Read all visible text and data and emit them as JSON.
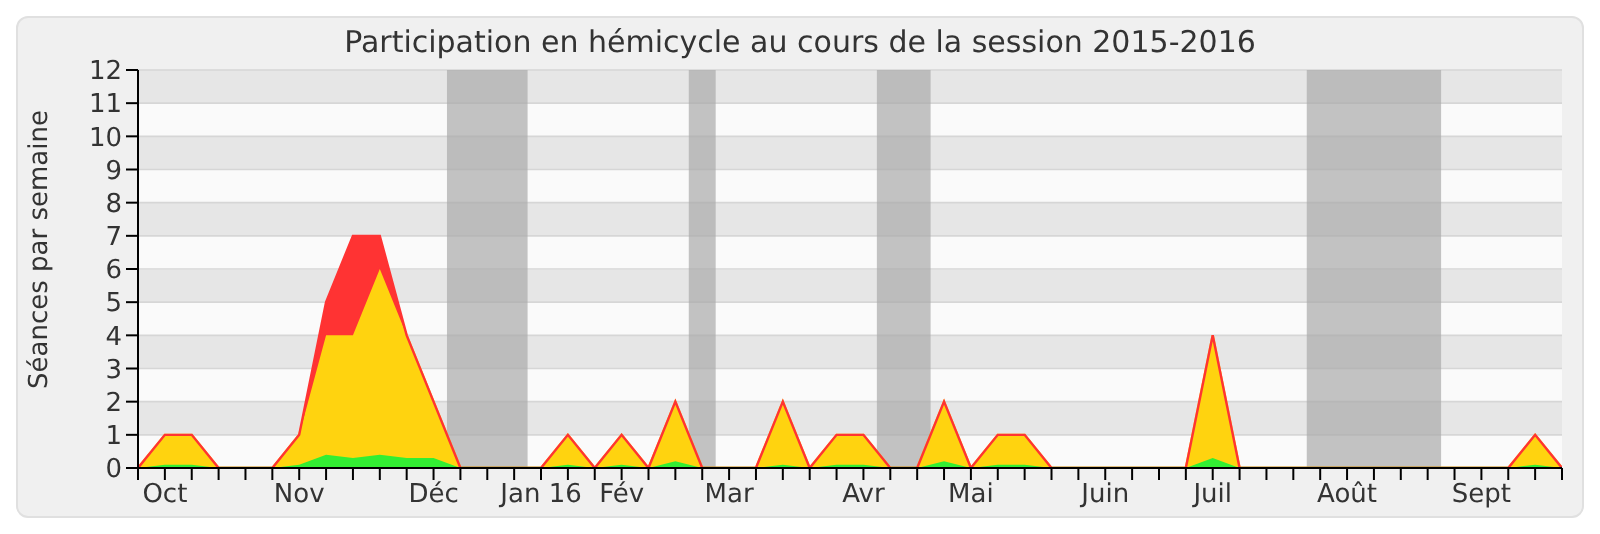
{
  "chart_data": {
    "type": "area",
    "title": "Participation en hémicycle au cours de la session 2015-2016",
    "ylabel": "Séances par semaine",
    "stacked": true,
    "grid": "y",
    "legend": false,
    "x": [
      "2015-09-29",
      "2015-10-06",
      "2015-10-13",
      "2015-10-20",
      "2015-10-27",
      "2015-11-03",
      "2015-11-10",
      "2015-11-17",
      "2015-11-24",
      "2015-12-01",
      "2015-12-08",
      "2015-12-15",
      "2015-12-22",
      "2015-12-29",
      "2016-01-05",
      "2016-01-12",
      "2016-01-19",
      "2016-01-26",
      "2016-02-02",
      "2016-02-09",
      "2016-02-16",
      "2016-02-23",
      "2016-03-01",
      "2016-03-08",
      "2016-03-15",
      "2016-03-22",
      "2016-03-29",
      "2016-04-05",
      "2016-04-12",
      "2016-04-19",
      "2016-04-26",
      "2016-05-03",
      "2016-05-10",
      "2016-05-17",
      "2016-05-24",
      "2016-05-31",
      "2016-06-07",
      "2016-06-14",
      "2016-06-21",
      "2016-06-28",
      "2016-07-05",
      "2016-07-12",
      "2016-07-19",
      "2016-07-26",
      "2016-08-02",
      "2016-08-09",
      "2016-08-16",
      "2016-08-23",
      "2016-08-30",
      "2016-09-06",
      "2016-09-13",
      "2016-09-20",
      "2016-09-27",
      "2016-10-04"
    ],
    "xlim": [
      "2015-09-29",
      "2016-10-04"
    ],
    "xticks": [
      {
        "value": "2015-09-29",
        "label": null
      },
      {
        "value": "2015-10-06",
        "label": "Oct"
      },
      {
        "value": "2015-10-13",
        "label": null
      },
      {
        "value": "2015-10-20",
        "label": null
      },
      {
        "value": "2015-10-27",
        "label": null
      },
      {
        "value": "2015-11-03",
        "label": null
      },
      {
        "value": "2015-11-10",
        "label": "Nov"
      },
      {
        "value": "2015-11-17",
        "label": null
      },
      {
        "value": "2015-11-24",
        "label": null
      },
      {
        "value": "2015-12-01",
        "label": null
      },
      {
        "value": "2015-12-08",
        "label": null
      },
      {
        "value": "2015-12-15",
        "label": "Déc"
      },
      {
        "value": "2015-12-22",
        "label": null
      },
      {
        "value": "2015-12-29",
        "label": null
      },
      {
        "value": "2016-01-05",
        "label": null
      },
      {
        "value": "2016-01-12",
        "label": "Jan 16"
      },
      {
        "value": "2016-01-19",
        "label": null
      },
      {
        "value": "2016-01-26",
        "label": null
      },
      {
        "value": "2016-02-02",
        "label": "Fév"
      },
      {
        "value": "2016-02-09",
        "label": null
      },
      {
        "value": "2016-02-16",
        "label": null
      },
      {
        "value": "2016-02-23",
        "label": null
      },
      {
        "value": "2016-03-01",
        "label": "Mar"
      },
      {
        "value": "2016-03-08",
        "label": null
      },
      {
        "value": "2016-03-15",
        "label": null
      },
      {
        "value": "2016-03-22",
        "label": null
      },
      {
        "value": "2016-03-29",
        "label": null
      },
      {
        "value": "2016-04-05",
        "label": "Avr"
      },
      {
        "value": "2016-04-12",
        "label": null
      },
      {
        "value": "2016-04-19",
        "label": null
      },
      {
        "value": "2016-04-26",
        "label": null
      },
      {
        "value": "2016-05-03",
        "label": "Mai"
      },
      {
        "value": "2016-05-10",
        "label": null
      },
      {
        "value": "2016-05-17",
        "label": null
      },
      {
        "value": "2016-05-24",
        "label": null
      },
      {
        "value": "2016-05-31",
        "label": null
      },
      {
        "value": "2016-06-07",
        "label": "Juin"
      },
      {
        "value": "2016-06-14",
        "label": null
      },
      {
        "value": "2016-06-21",
        "label": null
      },
      {
        "value": "2016-06-28",
        "label": null
      },
      {
        "value": "2016-07-05",
        "label": "Juil"
      },
      {
        "value": "2016-07-12",
        "label": null
      },
      {
        "value": "2016-07-19",
        "label": null
      },
      {
        "value": "2016-07-26",
        "label": null
      },
      {
        "value": "2016-08-02",
        "label": null
      },
      {
        "value": "2016-08-09",
        "label": "Août"
      },
      {
        "value": "2016-08-16",
        "label": null
      },
      {
        "value": "2016-08-23",
        "label": null
      },
      {
        "value": "2016-08-30",
        "label": null
      },
      {
        "value": "2016-09-06",
        "label": null
      },
      {
        "value": "2016-09-13",
        "label": "Sept"
      },
      {
        "value": "2016-09-20",
        "label": null
      },
      {
        "value": "2016-09-27",
        "label": null
      },
      {
        "value": "2016-10-04",
        "label": null
      }
    ],
    "ylim": [
      0,
      12
    ],
    "yticks": [
      0,
      1,
      2,
      3,
      4,
      5,
      6,
      7,
      8,
      9,
      10,
      11,
      12
    ],
    "series": [
      {
        "color": "#33ee33",
        "values": [
          0,
          0.1,
          0.1,
          0,
          0,
          0,
          0.1,
          0.4,
          0.3,
          0.4,
          0.3,
          0.3,
          0,
          0,
          0,
          0,
          0.1,
          0,
          0.1,
          0,
          0.2,
          0,
          0,
          0,
          0.1,
          0,
          0.1,
          0.1,
          0,
          0,
          0.2,
          0,
          0.1,
          0.1,
          0,
          0,
          0,
          0,
          0,
          0,
          0.3,
          0,
          0,
          0,
          0,
          0,
          0,
          0,
          0,
          0,
          0,
          0,
          0.1,
          0
        ]
      },
      {
        "color": "#ffd30f",
        "values": [
          0,
          0.9,
          0.9,
          0,
          0,
          0,
          0.9,
          3.6,
          3.7,
          5.6,
          3.7,
          1.7,
          0,
          0,
          0,
          0,
          0.9,
          0,
          0.9,
          0,
          1.8,
          0,
          0,
          0,
          1.9,
          0,
          0.9,
          0.9,
          0,
          0,
          1.8,
          0,
          0.9,
          0.9,
          0,
          0,
          0,
          0,
          0,
          0,
          3.7,
          0,
          0,
          0,
          0,
          0,
          0,
          0,
          0,
          0,
          0,
          0,
          0.9,
          0
        ]
      },
      {
        "color": "#ff3333",
        "values": [
          0,
          0,
          0,
          0,
          0,
          0,
          0,
          1,
          3,
          1,
          0,
          0,
          0,
          0,
          0,
          0,
          0,
          0,
          0,
          0,
          0,
          0,
          0,
          0,
          0,
          0,
          0,
          0,
          0,
          0,
          0,
          0,
          0,
          0,
          0,
          0,
          0,
          0,
          0,
          0,
          0,
          0,
          0,
          0,
          0,
          0,
          0,
          0,
          0,
          0,
          0,
          0,
          0,
          0
        ]
      }
    ],
    "bands": [
      {
        "axis": "x",
        "from": "2015-12-18T12:00",
        "to": "2016-01-08T12:00",
        "color": "#aaaaaa"
      },
      {
        "axis": "x",
        "from": "2016-02-19T12:00",
        "to": "2016-02-26T12:00",
        "color": "#aaaaaa"
      },
      {
        "axis": "x",
        "from": "2016-04-08T12:00",
        "to": "2016-04-22T12:00",
        "color": "#aaaaaa"
      },
      {
        "axis": "x",
        "from": "2016-07-29T12:00",
        "to": "2016-09-02T12:00",
        "color": "#aaaaaa"
      }
    ]
  }
}
